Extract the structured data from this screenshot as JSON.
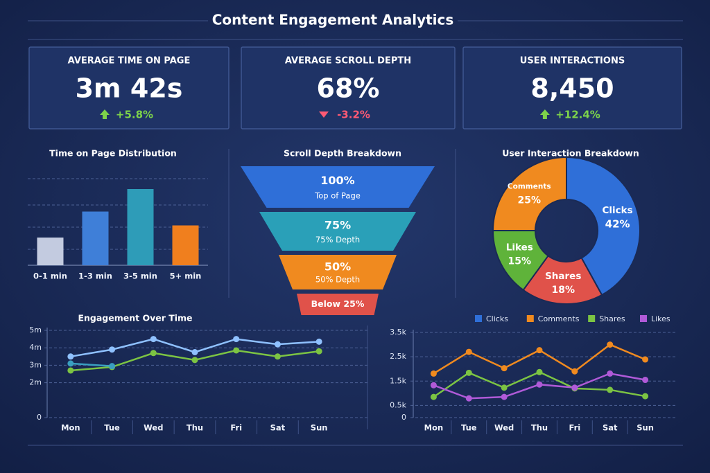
{
  "title": "Content Engagement Analytics",
  "kpis": [
    {
      "label": "AVERAGE TIME ON PAGE",
      "value": "3m 42s",
      "change": "+5.8%",
      "trend": "up"
    },
    {
      "label": "AVERAGE SCROLL DEPTH",
      "value": "68%",
      "change": "-3.2%",
      "trend": "down"
    },
    {
      "label": "USER INTERACTIONS",
      "value": "8,450",
      "change": "+12.4%",
      "trend": "up"
    }
  ],
  "chart_data": [
    {
      "type": "bar",
      "title": "Time on Page Distribution",
      "categories": [
        "0-1 min",
        "1-3 min",
        "3-5 min",
        "5+ min"
      ],
      "values": [
        1.6,
        3.1,
        4.4,
        2.3
      ],
      "colors": [
        "#c3cbe0",
        "#3f7fd8",
        "#2e9cb8",
        "#f07f1e"
      ],
      "ylim": [
        0,
        5
      ]
    },
    {
      "type": "funnel",
      "title": "Scroll Depth Breakdown",
      "categories": [
        "Top of Page",
        "75% Depth",
        "50% Depth",
        "Below 25%"
      ],
      "values": [
        100,
        75,
        50,
        null
      ],
      "value_labels": [
        "100%",
        "75%",
        "50%",
        null
      ],
      "colors": [
        "#2f6fd8",
        "#2aa0b8",
        "#f08a1f",
        "#e0524a"
      ]
    },
    {
      "type": "pie",
      "title": "User Interaction Breakdown",
      "donut": true,
      "categories": [
        "Clicks",
        "Shares",
        "Likes",
        "Comments"
      ],
      "values": [
        42,
        18,
        15,
        25
      ],
      "value_labels": [
        "42%",
        "18%",
        "15%",
        "25%"
      ],
      "colors": [
        "#2f6fd8",
        "#e0524a",
        "#5fb33a",
        "#f08a1f"
      ]
    },
    {
      "type": "line",
      "title": "Engagement Over Time",
      "categories": [
        "Mon",
        "Tue",
        "Wed",
        "Thu",
        "Fri",
        "Sat",
        "Sun"
      ],
      "series": [
        {
          "color": "#8fc1ff",
          "values": [
            3.5,
            3.9,
            4.5,
            3.75,
            4.5,
            4.2,
            4.35
          ]
        },
        {
          "color": "#7cc443",
          "values": [
            2.7,
            2.9,
            3.7,
            3.3,
            3.85,
            3.5,
            3.8
          ]
        },
        {
          "color": "#3a9fc0",
          "values": [
            3.1,
            2.95,
            null,
            null,
            null,
            null,
            null
          ]
        }
      ],
      "ylim": [
        0,
        5
      ],
      "yticks": [
        0,
        {
          "value": 2,
          "label": "2m"
        },
        {
          "value": 3,
          "label": "3m"
        },
        {
          "value": 4,
          "label": "4m"
        },
        {
          "value": 5,
          "label": "5m"
        }
      ],
      "grid": true
    },
    {
      "type": "line",
      "categories": [
        "Mon",
        "Tue",
        "Wed",
        "Thu",
        "Fri",
        "Sat",
        "Sun"
      ],
      "series": [
        {
          "name": "Clicks",
          "color": "#2f6fd8",
          "values": [
            null,
            null,
            null,
            null,
            null,
            null,
            null
          ]
        },
        {
          "name": "Comments",
          "color": "#f08a1f",
          "values": [
            1810,
            2700,
            2030,
            2770,
            1900,
            3000,
            2390
          ]
        },
        {
          "name": "Shares",
          "color": "#7cc443",
          "values": [
            850,
            1840,
            1230,
            1870,
            1200,
            1140,
            880
          ]
        },
        {
          "name": "Likes",
          "color": "#b05ad8",
          "values": [
            1330,
            790,
            850,
            1360,
            1230,
            1810,
            1550
          ]
        }
      ],
      "ylim": [
        0,
        3500
      ],
      "yticks": [
        0,
        {
          "value": 500,
          "label": "0.5k"
        },
        {
          "value": 1500,
          "label": "1.5k"
        },
        {
          "value": 2500,
          "label": "2.5k"
        },
        {
          "value": 3500,
          "label": "3.5k"
        }
      ],
      "grid": true,
      "legend": "top"
    }
  ]
}
